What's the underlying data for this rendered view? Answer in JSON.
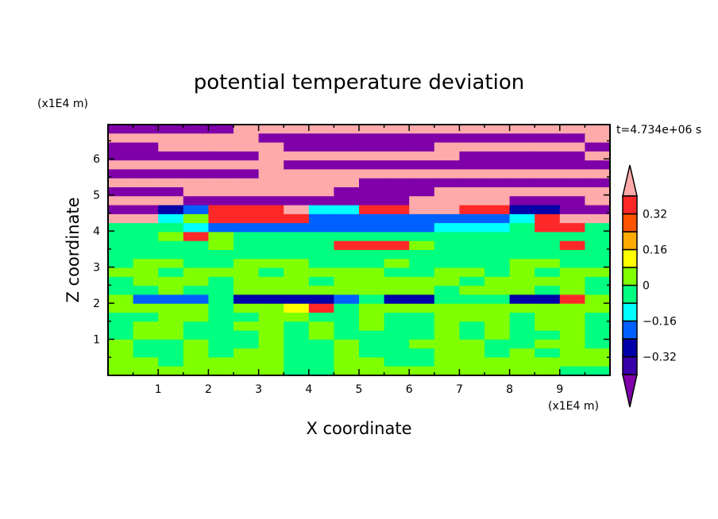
{
  "chart_data": {
    "type": "heatmap",
    "title": "potential temperature deviation",
    "xlabel": "X coordinate",
    "ylabel": "Z coordinate",
    "x_unit": "(x1E4 m)",
    "y_unit": "(x1E4 m)",
    "time_label": "t=4.734e+06 s",
    "xlim": [
      0,
      10
    ],
    "ylim": [
      0,
      6.95
    ],
    "x_ticks": [
      1,
      2,
      3,
      4,
      5,
      6,
      7,
      8,
      9
    ],
    "y_ticks": [
      1,
      2,
      3,
      4,
      5,
      6
    ],
    "levels": [
      -0.4,
      -0.32,
      -0.24,
      -0.16,
      -0.08,
      0,
      0.08,
      0.16,
      0.24,
      0.32,
      0.4
    ],
    "colors": [
      "#7f00a8",
      "#3800a8",
      "#0000a8",
      "#0060ff",
      "#00ffff",
      "#00ff80",
      "#80ff00",
      "#ffff00",
      "#ffaa00",
      "#ff5500",
      "#ff2828",
      "#ffaaaa"
    ],
    "colorbar_labels": [
      {
        "value": 0.32,
        "label": "0.32"
      },
      {
        "value": 0.16,
        "label": "0.16"
      },
      {
        "value": 0,
        "label": "0"
      },
      {
        "value": -0.16,
        "label": "−0.16"
      },
      {
        "value": -0.32,
        "label": "−0.32"
      }
    ],
    "grid_note_rows_top_to_bottom": true,
    "values": [
      [
        -0.5,
        -0.5,
        -0.5,
        -0.5,
        -0.5,
        0.5,
        0.5,
        0.5,
        0.5,
        0.5,
        0.5,
        0.5,
        0.5,
        0.5,
        0.5,
        0.5,
        0.5,
        0.5,
        0.5,
        0.5
      ],
      [
        0.5,
        0.5,
        0.5,
        0.5,
        0.5,
        0.5,
        -0.5,
        -0.5,
        -0.5,
        -0.5,
        -0.5,
        -0.5,
        -0.5,
        -0.5,
        -0.5,
        -0.5,
        -0.5,
        -0.5,
        -0.5,
        0.5
      ],
      [
        -0.5,
        -0.5,
        0.5,
        0.5,
        0.5,
        0.5,
        0.5,
        -0.5,
        -0.5,
        -0.5,
        -0.5,
        -0.5,
        -0.5,
        0.5,
        0.5,
        0.5,
        0.5,
        0.5,
        0.5,
        -0.5
      ],
      [
        -0.5,
        -0.5,
        -0.5,
        -0.5,
        -0.5,
        -0.5,
        0.5,
        0.5,
        0.5,
        0.5,
        0.5,
        0.5,
        0.5,
        0.5,
        -0.5,
        -0.5,
        -0.5,
        -0.5,
        -0.5,
        0.5
      ],
      [
        0.5,
        0.5,
        0.5,
        0.5,
        0.5,
        0.5,
        0.5,
        -0.5,
        -0.5,
        -0.5,
        -0.5,
        -0.5,
        -0.5,
        -0.5,
        -0.5,
        -0.5,
        -0.5,
        -0.5,
        -0.5,
        -0.5
      ],
      [
        -0.5,
        -0.5,
        -0.5,
        -0.5,
        -0.5,
        -0.5,
        0.5,
        0.5,
        0.5,
        0.5,
        0.5,
        0.5,
        0.5,
        0.5,
        0.5,
        0.5,
        0.5,
        0.5,
        0.5,
        0.5
      ],
      [
        0.5,
        0.5,
        0.5,
        0.5,
        0.5,
        0.5,
        0.5,
        0.5,
        0.5,
        0.5,
        -0.5,
        -0.5,
        -0.5,
        -0.5,
        -0.5,
        -0.5,
        -0.5,
        -0.5,
        -0.5,
        -0.5
      ],
      [
        -0.5,
        -0.5,
        -0.5,
        0.5,
        0.5,
        0.5,
        0.5,
        0.5,
        0.5,
        -0.5,
        -0.5,
        -0.5,
        -0.5,
        0.5,
        0.5,
        0.5,
        0.5,
        0.5,
        0.5,
        0.5
      ],
      [
        0.5,
        0.5,
        0.5,
        -0.5,
        -0.5,
        -0.5,
        -0.5,
        -0.5,
        -0.5,
        -0.5,
        -0.5,
        -0.5,
        0.5,
        0.5,
        0.5,
        0.5,
        -0.5,
        -0.5,
        -0.5,
        0.5
      ],
      [
        -0.5,
        -0.5,
        -0.28,
        -0.2,
        0.36,
        0.36,
        0.36,
        0.5,
        -0.12,
        -0.12,
        0.36,
        0.36,
        0.5,
        0.5,
        0.36,
        0.36,
        -0.28,
        -0.28,
        -0.5,
        -0.5
      ],
      [
        0.5,
        0.5,
        -0.12,
        0.04,
        0.36,
        0.36,
        0.36,
        0.36,
        -0.2,
        -0.2,
        -0.2,
        -0.2,
        -0.2,
        -0.2,
        -0.2,
        -0.2,
        -0.12,
        0.36,
        0.5,
        0.5
      ],
      [
        -0.04,
        -0.04,
        -0.04,
        -0.12,
        -0.2,
        -0.2,
        -0.2,
        -0.2,
        -0.2,
        -0.2,
        -0.2,
        -0.2,
        -0.2,
        -0.12,
        -0.12,
        -0.12,
        -0.04,
        0.36,
        0.36,
        -0.04
      ],
      [
        -0.04,
        -0.04,
        0.04,
        0.36,
        0.04,
        -0.04,
        -0.04,
        -0.04,
        -0.04,
        -0.04,
        -0.04,
        -0.04,
        -0.04,
        -0.04,
        -0.04,
        -0.04,
        -0.04,
        -0.04,
        -0.04,
        -0.04
      ],
      [
        -0.04,
        -0.04,
        -0.04,
        -0.04,
        0.04,
        -0.04,
        -0.04,
        -0.04,
        -0.04,
        0.36,
        0.36,
        0.36,
        0.04,
        -0.04,
        -0.04,
        -0.04,
        -0.04,
        -0.04,
        0.36,
        -0.04
      ],
      [
        -0.04,
        -0.04,
        -0.04,
        -0.04,
        -0.04,
        -0.04,
        -0.04,
        -0.04,
        -0.04,
        -0.04,
        -0.04,
        -0.04,
        -0.04,
        -0.04,
        -0.04,
        -0.04,
        -0.04,
        -0.04,
        -0.04,
        -0.04
      ],
      [
        -0.04,
        0.04,
        0.04,
        -0.04,
        -0.04,
        0.04,
        0.04,
        0.04,
        -0.04,
        -0.04,
        -0.04,
        0.04,
        -0.04,
        -0.04,
        -0.04,
        -0.04,
        0.04,
        0.04,
        -0.04,
        -0.04
      ],
      [
        0.04,
        0.04,
        -0.04,
        0.04,
        0.04,
        0.04,
        -0.04,
        0.04,
        0.04,
        0.04,
        0.04,
        -0.04,
        -0.04,
        0.04,
        0.04,
        -0.04,
        0.04,
        -0.04,
        0.04,
        0.04
      ],
      [
        -0.04,
        0.04,
        0.04,
        0.04,
        -0.04,
        0.04,
        0.04,
        0.04,
        -0.04,
        0.04,
        0.04,
        0.04,
        0.04,
        0.04,
        -0.04,
        0.04,
        0.04,
        0.04,
        0.04,
        -0.04
      ],
      [
        -0.04,
        -0.04,
        0.04,
        -0.04,
        -0.04,
        0.04,
        0.04,
        0.04,
        0.04,
        0.04,
        0.04,
        0.04,
        0.04,
        -0.04,
        0.04,
        0.04,
        0.04,
        -0.04,
        0.04,
        -0.04
      ],
      [
        0.04,
        -0.2,
        -0.2,
        -0.2,
        -0.04,
        -0.28,
        -0.28,
        -0.28,
        -0.28,
        -0.2,
        -0.04,
        -0.28,
        -0.28,
        -0.04,
        -0.04,
        -0.04,
        -0.28,
        -0.28,
        0.36,
        0.04
      ],
      [
        0.04,
        0.04,
        0.04,
        0.04,
        -0.04,
        0.04,
        0.04,
        0.12,
        0.36,
        -0.04,
        0.04,
        0.04,
        0.04,
        0.04,
        0.04,
        0.04,
        0.04,
        0.04,
        0.04,
        0.04
      ],
      [
        -0.04,
        -0.04,
        0.04,
        0.04,
        -0.04,
        -0.04,
        0.04,
        0.04,
        -0.04,
        -0.04,
        0.04,
        -0.04,
        -0.04,
        0.04,
        0.04,
        0.04,
        -0.04,
        0.04,
        0.04,
        -0.04
      ],
      [
        -0.04,
        0.04,
        0.04,
        -0.04,
        -0.04,
        0.04,
        0.04,
        -0.04,
        0.04,
        -0.04,
        0.04,
        -0.04,
        -0.04,
        0.04,
        -0.04,
        0.04,
        -0.04,
        0.04,
        0.04,
        -0.04
      ],
      [
        -0.04,
        0.04,
        0.04,
        -0.04,
        -0.04,
        -0.04,
        0.04,
        -0.04,
        0.04,
        -0.04,
        -0.04,
        -0.04,
        -0.04,
        0.04,
        -0.04,
        0.04,
        -0.04,
        -0.04,
        0.04,
        -0.04
      ],
      [
        0.04,
        -0.04,
        -0.04,
        0.04,
        -0.04,
        -0.04,
        0.04,
        -0.04,
        -0.04,
        0.04,
        -0.04,
        -0.04,
        0.04,
        0.04,
        0.04,
        -0.04,
        -0.04,
        0.04,
        0.04,
        -0.04
      ],
      [
        0.04,
        -0.04,
        -0.04,
        0.04,
        -0.04,
        0.04,
        0.04,
        -0.04,
        -0.04,
        0.04,
        -0.04,
        -0.04,
        -0.04,
        0.04,
        0.04,
        -0.04,
        0.04,
        -0.04,
        0.04,
        0.04
      ],
      [
        0.04,
        0.04,
        -0.04,
        0.04,
        0.04,
        0.04,
        0.04,
        -0.04,
        -0.04,
        0.04,
        0.04,
        -0.04,
        -0.04,
        0.04,
        0.04,
        0.04,
        0.04,
        0.04,
        0.04,
        0.04
      ],
      [
        0.04,
        0.04,
        0.04,
        0.04,
        0.04,
        0.04,
        0.04,
        -0.04,
        -0.04,
        0.04,
        0.04,
        0.04,
        0.04,
        0.04,
        0.04,
        0.04,
        0.04,
        0.04,
        -0.04,
        -0.04
      ]
    ]
  }
}
